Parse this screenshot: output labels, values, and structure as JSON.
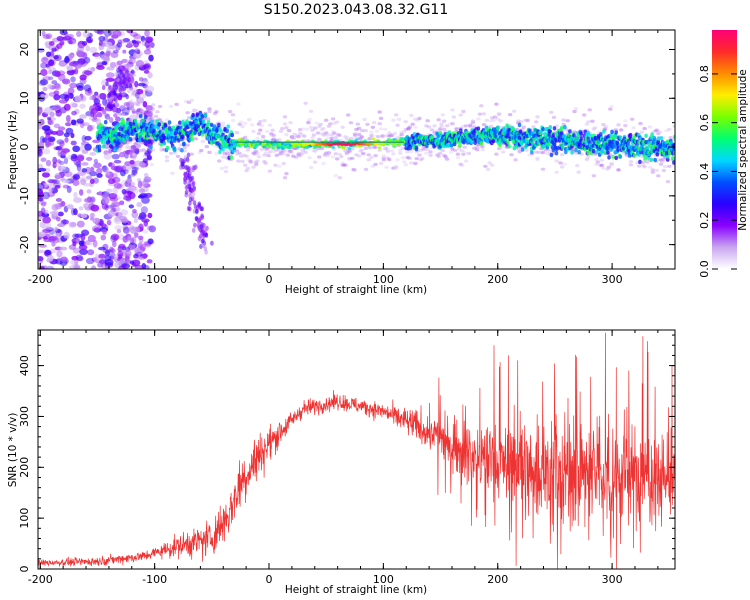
{
  "title": "S150.2023.043.08.32.G11",
  "chart_data": [
    {
      "type": "heatmap",
      "xlabel": "Height of straight line (km)",
      "ylabel": "Frequency (Hz)",
      "xlim": [
        -202,
        355
      ],
      "ylim": [
        -25,
        24
      ],
      "x_ticks": [
        -200,
        -100,
        0,
        100,
        200,
        300
      ],
      "y_ticks": [
        -20,
        -10,
        0,
        10,
        20
      ],
      "colorbar": {
        "label": "Normalized spectral amplitude",
        "range": [
          0,
          0.98
        ],
        "ticks": [
          0.0,
          0.2,
          0.4,
          0.6,
          0.8
        ],
        "colormap": [
          "#ffffff",
          "#c9a6f0",
          "#8a00ff",
          "#2a00ff",
          "#0050ff",
          "#00d8ff",
          "#00ff70",
          "#78ff00",
          "#ffee00",
          "#ff8c00",
          "#ff2a2a",
          "#ff0077"
        ]
      },
      "ridge": [
        {
          "x": -150,
          "y": 2.0
        },
        {
          "x": -120,
          "y": 3.5
        },
        {
          "x": -100,
          "y": 3.0
        },
        {
          "x": -80,
          "y": 2.0
        },
        {
          "x": -60,
          "y": 5.0
        },
        {
          "x": -45,
          "y": 2.0
        },
        {
          "x": -30,
          "y": 0.8
        },
        {
          "x": 0,
          "y": 0.5
        },
        {
          "x": 50,
          "y": 0.6
        },
        {
          "x": 100,
          "y": 0.8
        },
        {
          "x": 150,
          "y": 1.5
        },
        {
          "x": 200,
          "y": 2.5
        },
        {
          "x": 250,
          "y": 1.5
        },
        {
          "x": 300,
          "y": 0.5
        },
        {
          "x": 355,
          "y": -0.5
        }
      ],
      "branches": [
        {
          "x_range": [
            -75,
            -55
          ],
          "y_range": [
            -2,
            -20
          ],
          "note": "descending"
        },
        {
          "x_range": [
            -140,
            -120
          ],
          "y_range": [
            10,
            15
          ],
          "note": "upper"
        }
      ]
    },
    {
      "type": "line",
      "xlabel": "Height of straight line (km)",
      "ylabel": "SNR (10 * v/v)",
      "xlim": [
        -202,
        355
      ],
      "ylim": [
        0,
        470
      ],
      "x_ticks": [
        -200,
        -100,
        0,
        100,
        200,
        300
      ],
      "y_ticks": [
        0,
        100,
        200,
        300,
        400
      ],
      "color": "#ee3333",
      "trend": [
        {
          "x": -202,
          "y": 12
        },
        {
          "x": -150,
          "y": 15
        },
        {
          "x": -110,
          "y": 25
        },
        {
          "x": -80,
          "y": 45
        },
        {
          "x": -50,
          "y": 60
        },
        {
          "x": -35,
          "y": 110
        },
        {
          "x": -25,
          "y": 170
        },
        {
          "x": -10,
          "y": 220
        },
        {
          "x": 10,
          "y": 270
        },
        {
          "x": 30,
          "y": 315
        },
        {
          "x": 60,
          "y": 330
        },
        {
          "x": 100,
          "y": 310
        },
        {
          "x": 140,
          "y": 270
        },
        {
          "x": 180,
          "y": 220
        },
        {
          "x": 220,
          "y": 200
        },
        {
          "x": 260,
          "y": 190
        },
        {
          "x": 300,
          "y": 185
        },
        {
          "x": 355,
          "y": 180
        }
      ],
      "spread": [
        {
          "x": -202,
          "y": 6
        },
        {
          "x": -100,
          "y": 10
        },
        {
          "x": -40,
          "y": 40
        },
        {
          "x": -20,
          "y": 50
        },
        {
          "x": 20,
          "y": 15
        },
        {
          "x": 100,
          "y": 15
        },
        {
          "x": 150,
          "y": 40
        },
        {
          "x": 200,
          "y": 70
        },
        {
          "x": 250,
          "y": 110
        },
        {
          "x": 300,
          "y": 95
        },
        {
          "x": 355,
          "y": 80
        }
      ]
    }
  ]
}
